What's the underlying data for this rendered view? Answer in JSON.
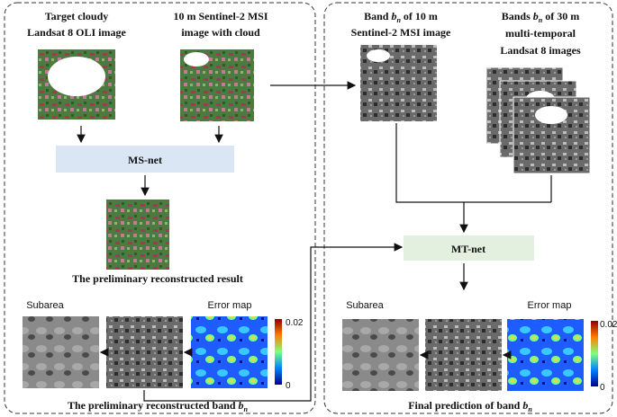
{
  "left": {
    "landsat_label": [
      "Target cloudy",
      "Landsat 8 OLI image"
    ],
    "sentinel_label": [
      "10 m Sentinel-2 MSI",
      "image with cloud"
    ],
    "module": "MS-net",
    "result_caption": "The preliminary reconstructed result",
    "subarea": "Subarea",
    "error_map": "Error map",
    "colorbar_max": "0.02",
    "colorbar_min": "0",
    "band_caption": {
      "prefix": "The preliminary  reconstructed band ",
      "variable": "b",
      "subscript": "n"
    }
  },
  "right": {
    "band_label": {
      "prefix": "Band ",
      "variable": "b",
      "subscript": "n",
      "suffix": " of 10 m",
      "line2": "Sentinel-2 MSI image"
    },
    "bands_label": {
      "prefix": "Bands ",
      "variable": "b",
      "subscript": "n",
      "suffix": " of 30 m",
      "line2": "multi-temporal",
      "line3": "Landsat 8 images"
    },
    "module": "MT-net",
    "subarea": "Subarea",
    "error_map": "Error map",
    "colorbar_max": "0.02",
    "colorbar_min": "0",
    "final_caption": {
      "prefix": "Final prediction of band ",
      "variable": "b",
      "subscript": "n"
    }
  }
}
